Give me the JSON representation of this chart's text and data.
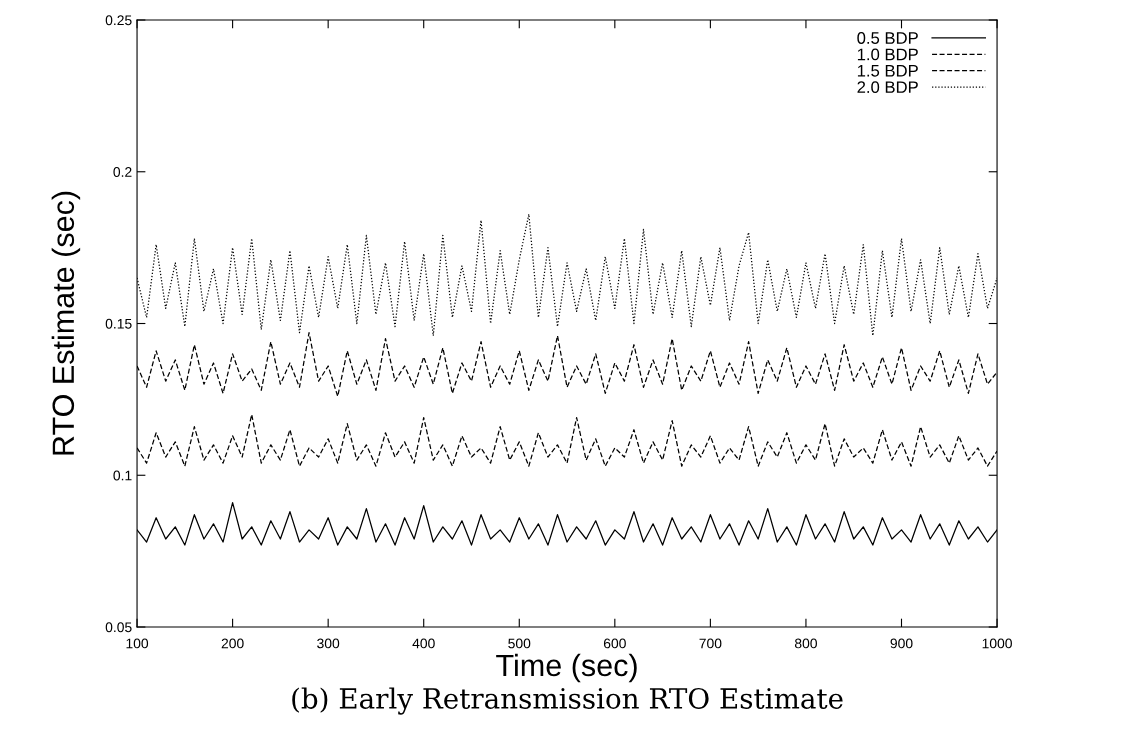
{
  "chart_data": {
    "type": "line",
    "title": "(b) Early Retransmission RTO Estimate",
    "xlabel": "Time (sec)",
    "ylabel": "RTO Estimate (sec)",
    "x": [
      100,
      110,
      120,
      130,
      140,
      150,
      160,
      170,
      180,
      190,
      200,
      210,
      220,
      230,
      240,
      250,
      260,
      270,
      280,
      290,
      300,
      310,
      320,
      330,
      340,
      350,
      360,
      370,
      380,
      390,
      400,
      410,
      420,
      430,
      440,
      450,
      460,
      470,
      480,
      490,
      500,
      510,
      520,
      530,
      540,
      550,
      560,
      570,
      580,
      590,
      600,
      610,
      620,
      630,
      640,
      650,
      660,
      670,
      680,
      690,
      700,
      710,
      720,
      730,
      740,
      750,
      760,
      770,
      780,
      790,
      800,
      810,
      820,
      830,
      840,
      850,
      860,
      870,
      880,
      890,
      900,
      910,
      920,
      930,
      940,
      950,
      960,
      970,
      980,
      990,
      1000
    ],
    "series": [
      {
        "name": "0.5 BDP",
        "color": "#000000",
        "line_style": "solid",
        "values": [
          0.082,
          0.078,
          0.086,
          0.079,
          0.083,
          0.077,
          0.087,
          0.079,
          0.084,
          0.078,
          0.091,
          0.079,
          0.083,
          0.077,
          0.085,
          0.079,
          0.088,
          0.078,
          0.082,
          0.079,
          0.086,
          0.077,
          0.083,
          0.079,
          0.089,
          0.078,
          0.084,
          0.077,
          0.086,
          0.079,
          0.09,
          0.078,
          0.083,
          0.079,
          0.085,
          0.077,
          0.087,
          0.079,
          0.082,
          0.078,
          0.086,
          0.079,
          0.084,
          0.077,
          0.087,
          0.078,
          0.083,
          0.079,
          0.085,
          0.077,
          0.082,
          0.079,
          0.088,
          0.078,
          0.084,
          0.077,
          0.086,
          0.079,
          0.083,
          0.078,
          0.087,
          0.079,
          0.084,
          0.077,
          0.085,
          0.079,
          0.089,
          0.078,
          0.083,
          0.077,
          0.087,
          0.079,
          0.084,
          0.078,
          0.088,
          0.079,
          0.083,
          0.077,
          0.086,
          0.079,
          0.082,
          0.078,
          0.087,
          0.079,
          0.084,
          0.077,
          0.085,
          0.079,
          0.083,
          0.078,
          0.082
        ]
      },
      {
        "name": "1.0 BDP",
        "color": "#000000",
        "line_style": "dashed",
        "values": [
          0.109,
          0.104,
          0.114,
          0.106,
          0.111,
          0.103,
          0.116,
          0.105,
          0.11,
          0.104,
          0.113,
          0.106,
          0.12,
          0.104,
          0.11,
          0.105,
          0.115,
          0.103,
          0.109,
          0.106,
          0.112,
          0.104,
          0.117,
          0.105,
          0.11,
          0.103,
          0.114,
          0.106,
          0.111,
          0.104,
          0.119,
          0.105,
          0.11,
          0.103,
          0.113,
          0.106,
          0.109,
          0.104,
          0.116,
          0.105,
          0.111,
          0.103,
          0.114,
          0.106,
          0.11,
          0.104,
          0.119,
          0.105,
          0.112,
          0.103,
          0.109,
          0.106,
          0.115,
          0.104,
          0.111,
          0.105,
          0.118,
          0.103,
          0.11,
          0.106,
          0.113,
          0.104,
          0.109,
          0.105,
          0.116,
          0.103,
          0.111,
          0.106,
          0.114,
          0.104,
          0.11,
          0.105,
          0.117,
          0.103,
          0.112,
          0.106,
          0.109,
          0.104,
          0.115,
          0.105,
          0.111,
          0.103,
          0.116,
          0.106,
          0.11,
          0.104,
          0.113,
          0.105,
          0.109,
          0.103,
          0.108
        ]
      },
      {
        "name": "1.5 BDP",
        "color": "#000000",
        "line_style": "dashed",
        "values": [
          0.136,
          0.129,
          0.141,
          0.131,
          0.138,
          0.128,
          0.143,
          0.13,
          0.137,
          0.127,
          0.14,
          0.131,
          0.135,
          0.128,
          0.144,
          0.13,
          0.137,
          0.129,
          0.147,
          0.131,
          0.136,
          0.126,
          0.141,
          0.13,
          0.138,
          0.128,
          0.145,
          0.131,
          0.136,
          0.129,
          0.139,
          0.13,
          0.142,
          0.127,
          0.137,
          0.131,
          0.144,
          0.129,
          0.136,
          0.13,
          0.141,
          0.128,
          0.138,
          0.131,
          0.146,
          0.129,
          0.136,
          0.13,
          0.14,
          0.127,
          0.137,
          0.131,
          0.143,
          0.129,
          0.138,
          0.13,
          0.145,
          0.128,
          0.136,
          0.131,
          0.141,
          0.129,
          0.137,
          0.13,
          0.144,
          0.127,
          0.138,
          0.131,
          0.142,
          0.129,
          0.136,
          0.13,
          0.14,
          0.128,
          0.143,
          0.131,
          0.137,
          0.129,
          0.139,
          0.13,
          0.142,
          0.128,
          0.136,
          0.131,
          0.141,
          0.129,
          0.138,
          0.127,
          0.14,
          0.13,
          0.134
        ]
      },
      {
        "name": "2.0 BDP",
        "color": "#000000",
        "line_style": "dotted",
        "values": [
          0.165,
          0.152,
          0.176,
          0.155,
          0.17,
          0.149,
          0.178,
          0.154,
          0.168,
          0.15,
          0.175,
          0.153,
          0.178,
          0.148,
          0.171,
          0.151,
          0.174,
          0.147,
          0.169,
          0.152,
          0.172,
          0.155,
          0.176,
          0.15,
          0.179,
          0.153,
          0.17,
          0.149,
          0.177,
          0.151,
          0.173,
          0.146,
          0.179,
          0.152,
          0.169,
          0.154,
          0.184,
          0.15,
          0.174,
          0.153,
          0.171,
          0.186,
          0.152,
          0.175,
          0.149,
          0.17,
          0.154,
          0.168,
          0.151,
          0.172,
          0.155,
          0.178,
          0.15,
          0.181,
          0.153,
          0.17,
          0.152,
          0.174,
          0.149,
          0.172,
          0.156,
          0.175,
          0.151,
          0.169,
          0.18,
          0.15,
          0.171,
          0.154,
          0.168,
          0.152,
          0.17,
          0.155,
          0.173,
          0.15,
          0.169,
          0.153,
          0.176,
          0.146,
          0.174,
          0.152,
          0.178,
          0.154,
          0.171,
          0.15,
          0.175,
          0.153,
          0.169,
          0.152,
          0.173,
          0.155,
          0.165
        ]
      }
    ],
    "xlim": [
      100,
      1000
    ],
    "ylim": [
      0.05,
      0.25
    ],
    "xticks": [
      100,
      200,
      300,
      400,
      500,
      600,
      700,
      800,
      900,
      1000
    ],
    "yticks": [
      0.05,
      0.1,
      0.15,
      0.2,
      0.25
    ],
    "legend": "top right",
    "grid": false,
    "marker": "none"
  }
}
